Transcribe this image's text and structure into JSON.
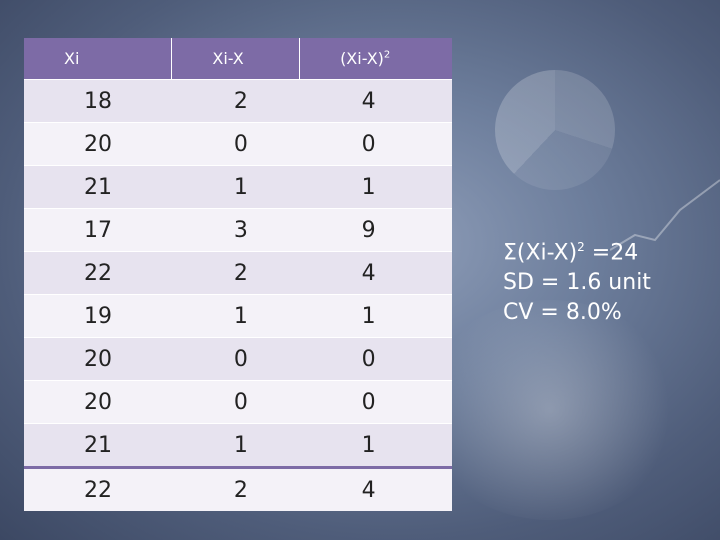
{
  "table": {
    "headers": [
      "Xi",
      "Xi-X",
      "(Xi-X)",
      "2"
    ],
    "rows": [
      [
        "18",
        "2",
        "4"
      ],
      [
        "20",
        "0",
        "0"
      ],
      [
        "21",
        "1",
        "1"
      ],
      [
        "17",
        "3",
        "9"
      ],
      [
        "22",
        "2",
        "4"
      ],
      [
        "19",
        "1",
        "1"
      ],
      [
        "20",
        "0",
        "0"
      ],
      [
        "20",
        "0",
        "0"
      ],
      [
        "21",
        "1",
        "1"
      ],
      [
        "22",
        "2",
        "4"
      ]
    ]
  },
  "summary": {
    "sum_prefix": "Σ(Xi-X)",
    "sum_sup": "2",
    "sum_suffix": " =24",
    "sd": "SD = 1.6 unit",
    "cv": "CV = 8.0%"
  },
  "colors": {
    "header_bg": "#7d6ba6",
    "row_odd": "#e7e3ef",
    "row_even": "#f4f2f8"
  }
}
